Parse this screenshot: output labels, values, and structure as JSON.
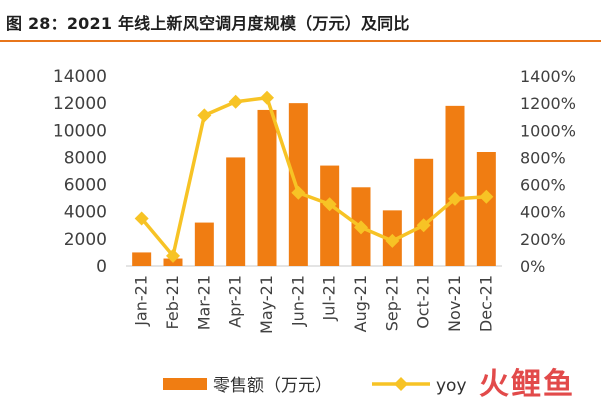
{
  "title": "图 28：2021 年线上新风空调月度规模（万元）及同比",
  "watermark": "火鲤鱼",
  "colors": {
    "bar": "#f07d12",
    "line": "#f7c325",
    "rule": "#e8761b",
    "axis_text": "#404040"
  },
  "chart_data": {
    "type": "bar",
    "categories": [
      "Jan-21",
      "Feb-21",
      "Mar-21",
      "Apr-21",
      "May-21",
      "Jun-21",
      "Jul-21",
      "Aug-21",
      "Sep-21",
      "Oct-21",
      "Nov-21",
      "Dec-21"
    ],
    "series": [
      {
        "name": "零售额（万元）",
        "type": "bar",
        "axis": "left",
        "values": [
          1000,
          550,
          3200,
          8000,
          11500,
          12000,
          7400,
          5800,
          4100,
          7900,
          11800,
          8400
        ]
      },
      {
        "name": "yoy",
        "type": "line",
        "axis": "right",
        "unit": "%",
        "values": [
          350,
          75,
          1110,
          1210,
          1240,
          540,
          455,
          285,
          185,
          300,
          495,
          510
        ]
      }
    ],
    "yleft": {
      "ylim": [
        0,
        14000
      ],
      "ticks": [
        "0",
        "2000",
        "4000",
        "6000",
        "8000",
        "10000",
        "12000",
        "14000"
      ]
    },
    "yright": {
      "ylim": [
        0,
        1400
      ],
      "ticks": [
        "0%",
        "200%",
        "400%",
        "600%",
        "800%",
        "1000%",
        "1200%",
        "1400%"
      ]
    },
    "legend_position": "bottom",
    "grid": false
  }
}
